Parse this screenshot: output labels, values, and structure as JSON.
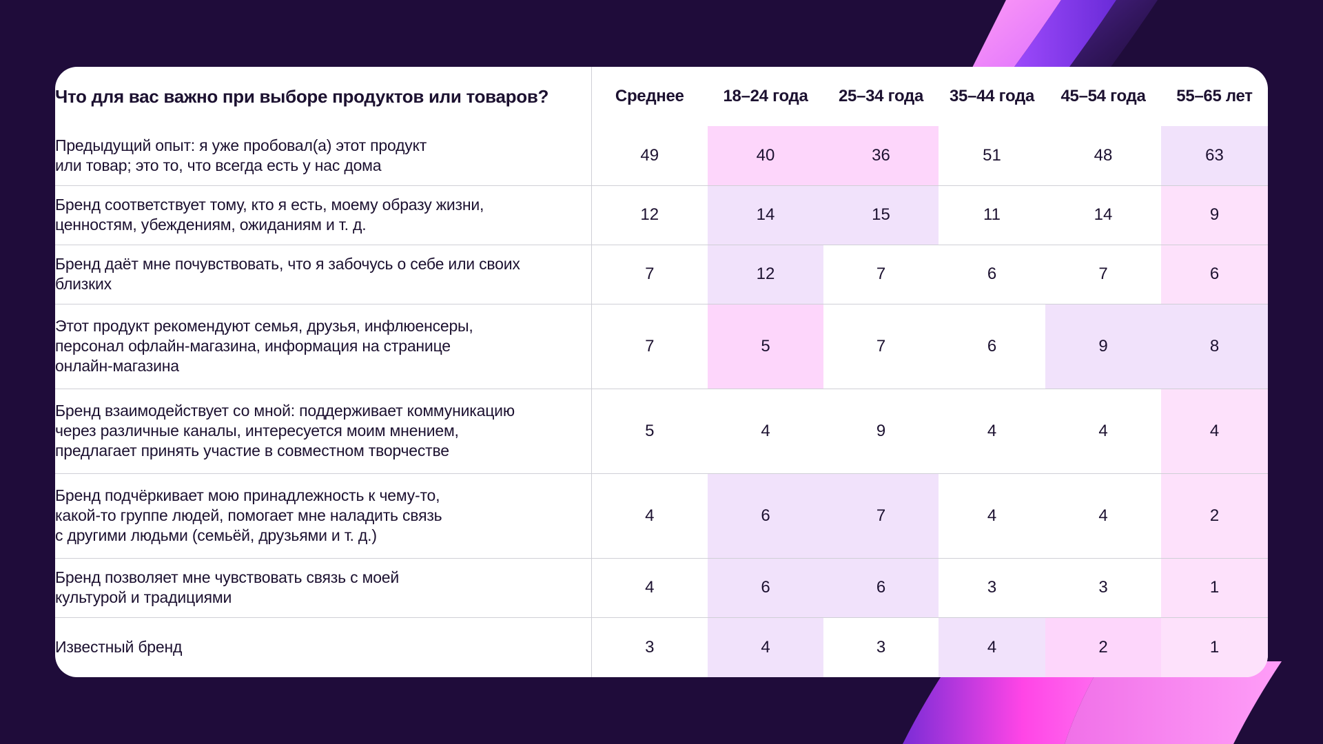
{
  "chart_data": {
    "type": "table",
    "title": "Что для вас важно при выборе продуктов или товаров?",
    "columns": [
      "Среднее",
      "18–24 года",
      "25–34 года",
      "35–44 года",
      "45–54 года",
      "55–65 лет"
    ],
    "rows": [
      {
        "label": "Предыдущий опыт: я уже пробовал(а) этот продукт\nили товар; это то, что всегда есть у нас дома",
        "values": [
          49,
          40,
          36,
          51,
          48,
          63
        ],
        "colors": [
          "#ffffff",
          "#fdd6fb",
          "#fdd6fb",
          "#ffffff",
          "#ffffff",
          "#f1e2fb"
        ]
      },
      {
        "label": "Бренд соответствует тому, кто я есть, моему образу жизни,\nценностям, убеждениям, ожиданиям и т. д.",
        "values": [
          12,
          14,
          15,
          11,
          14,
          9
        ],
        "colors": [
          "#ffffff",
          "#f1e2fb",
          "#f1e2fb",
          "#ffffff",
          "#ffffff",
          "#fde1fb"
        ]
      },
      {
        "label": "Бренд даёт мне почувствовать, что я забочусь о себе или своих\nблизких",
        "values": [
          7,
          12,
          7,
          6,
          7,
          6
        ],
        "colors": [
          "#ffffff",
          "#f1e2fb",
          "#ffffff",
          "#ffffff",
          "#ffffff",
          "#fde1fb"
        ]
      },
      {
        "label": "Этот продукт рекомендуют семья, друзья, инфлюенсеры,\nперсонал офлайн-магазина, информация на странице\nонлайн-магазина",
        "values": [
          7,
          5,
          7,
          6,
          9,
          8
        ],
        "colors": [
          "#ffffff",
          "#fdd6fb",
          "#ffffff",
          "#ffffff",
          "#f1e2fb",
          "#f1e2fb"
        ]
      },
      {
        "label": "Бренд взаимодействует со мной: поддерживает коммуникацию\nчерез различные каналы, интересуется моим мнением,\nпредлагает принять участие в совместном творчестве",
        "values": [
          5,
          4,
          9,
          4,
          4,
          4
        ],
        "colors": [
          "#ffffff",
          "#ffffff",
          "#ffffff",
          "#ffffff",
          "#ffffff",
          "#fde1fb"
        ]
      },
      {
        "label": "Бренд подчёркивает мою принадлежность к чему-то,\nкакой-то группе людей, помогает мне наладить связь\nс другими людьми (семьёй, друзьями и т. д.)",
        "values": [
          4,
          6,
          7,
          4,
          4,
          2
        ],
        "colors": [
          "#ffffff",
          "#f1e2fb",
          "#f1e2fb",
          "#ffffff",
          "#ffffff",
          "#fde1fb"
        ]
      },
      {
        "label": "Бренд позволяет мне чувствовать связь с моей\nкультурой и традициями",
        "values": [
          4,
          6,
          6,
          3,
          3,
          1
        ],
        "colors": [
          "#ffffff",
          "#f1e2fb",
          "#f1e2fb",
          "#ffffff",
          "#ffffff",
          "#fde1fb"
        ]
      },
      {
        "label": "Известный бренд",
        "values": [
          3,
          4,
          3,
          4,
          2,
          1
        ],
        "colors": [
          "#ffffff",
          "#f1e2fb",
          "#ffffff",
          "#f1e2fb",
          "#fdd6fb",
          "#fde1fb"
        ]
      }
    ]
  }
}
